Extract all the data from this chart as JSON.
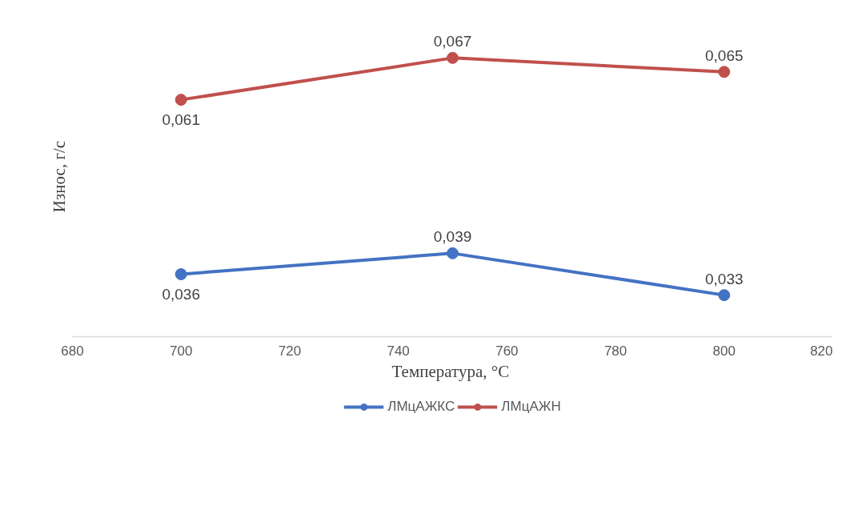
{
  "chart_data": {
    "type": "line",
    "xlabel": "Температура,  °С",
    "ylabel": "Износ, г/с",
    "x": [
      700,
      750,
      800
    ],
    "xlim": [
      680,
      820
    ],
    "xticks": [
      680,
      700,
      720,
      740,
      760,
      780,
      800,
      820
    ],
    "tick_labels": "x",
    "grid": false,
    "legend": "bottom",
    "marker": "circle",
    "line_style": "solid",
    "series": [
      {
        "name": "ЛМцАЖКС",
        "color": "#4472c4",
        "values": [
          0.036,
          0.039,
          0.033
        ],
        "value_labels": [
          "0,036",
          "0,039",
          "0,033"
        ]
      },
      {
        "name": "ЛМцАЖН",
        "color": "#c0504d",
        "values": [
          0.061,
          0.067,
          0.065
        ],
        "value_labels": [
          "0,061",
          "0,067",
          "0,065"
        ]
      }
    ]
  }
}
